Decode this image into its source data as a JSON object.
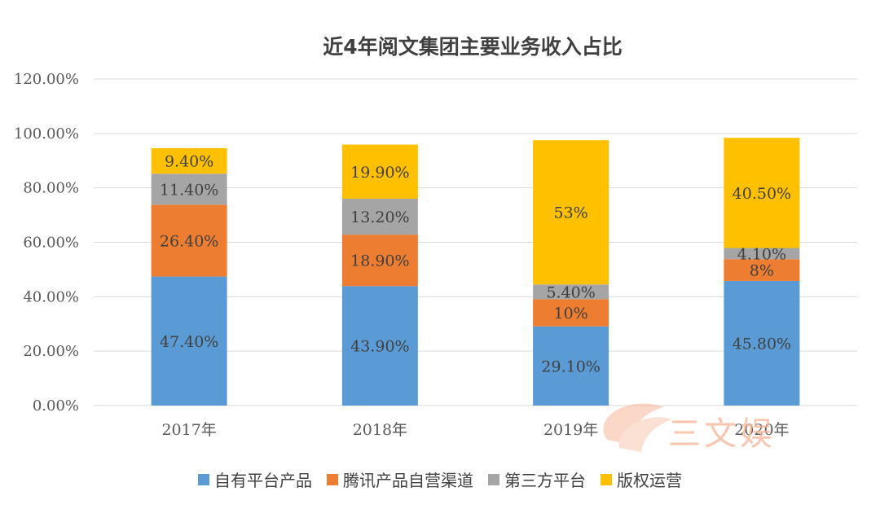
{
  "chart_data": {
    "type": "bar",
    "stacked": true,
    "title": "近4年阅文集团主要业务收入占比",
    "categories": [
      "2017年",
      "2018年",
      "2019年",
      "2020年"
    ],
    "ylim": [
      0,
      120
    ],
    "yticks": [
      "0.00%",
      "20.00%",
      "40.00%",
      "60.00%",
      "80.00%",
      "100.00%",
      "120.00%"
    ],
    "grid": true,
    "legend_position": "bottom",
    "series": [
      {
        "name": "自有平台产品",
        "color": "#5B9BD5",
        "values": [
          47.4,
          43.9,
          29.1,
          45.8
        ],
        "labels": [
          "47.40%",
          "43.90%",
          "29.10%",
          "45.80%"
        ]
      },
      {
        "name": "腾讯产品自营渠道",
        "color": "#ED7D31",
        "values": [
          26.4,
          18.9,
          10,
          8
        ],
        "labels": [
          "26.40%",
          "18.90%",
          "10%",
          "8%"
        ]
      },
      {
        "name": "第三方平台",
        "color": "#A5A5A5",
        "values": [
          11.4,
          13.2,
          5.4,
          4.1
        ],
        "labels": [
          "11.40%",
          "13.20%",
          "5.40%",
          "4.10%"
        ]
      },
      {
        "name": "版权运营",
        "color": "#FFC000",
        "values": [
          9.4,
          19.9,
          53,
          40.5
        ],
        "labels": [
          "9.40%",
          "19.90%",
          "53%",
          "40.50%"
        ]
      }
    ]
  },
  "watermark": {
    "text": "三文娱"
  }
}
